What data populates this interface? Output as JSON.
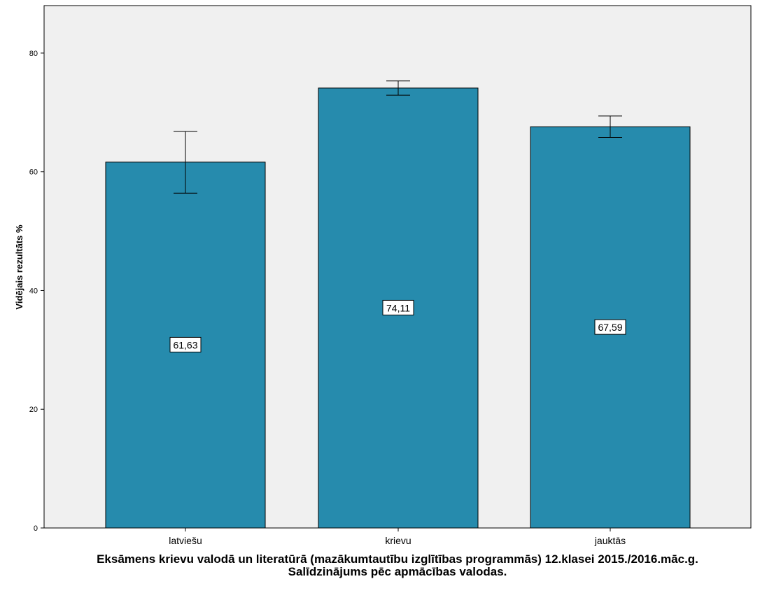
{
  "chart_data": {
    "type": "bar",
    "categories": [
      "latviešu",
      "krievu",
      "jauktās"
    ],
    "values": [
      61.63,
      74.11,
      67.59
    ],
    "value_labels": [
      "61,63",
      "74,11",
      "67,59"
    ],
    "error_bars": [
      {
        "low": 56.4,
        "high": 66.8
      },
      {
        "low": 72.9,
        "high": 75.3
      },
      {
        "low": 65.8,
        "high": 69.4
      }
    ],
    "ylabel": "Vidējais rezultāts %",
    "xlabel": "",
    "ylim": [
      0,
      88
    ],
    "yticks": [
      0,
      20,
      40,
      60,
      80
    ],
    "title_lines": [
      "Eksāmens krievu valodā un literatūrā (mazākumtautību izglītības programmās) 12.klasei 2015./2016.māc.g.",
      "Salīdzinājums pēc apmācības valodas."
    ],
    "bar_color": "#268bad",
    "plot_background": "#f0f0f0",
    "grid": false
  }
}
